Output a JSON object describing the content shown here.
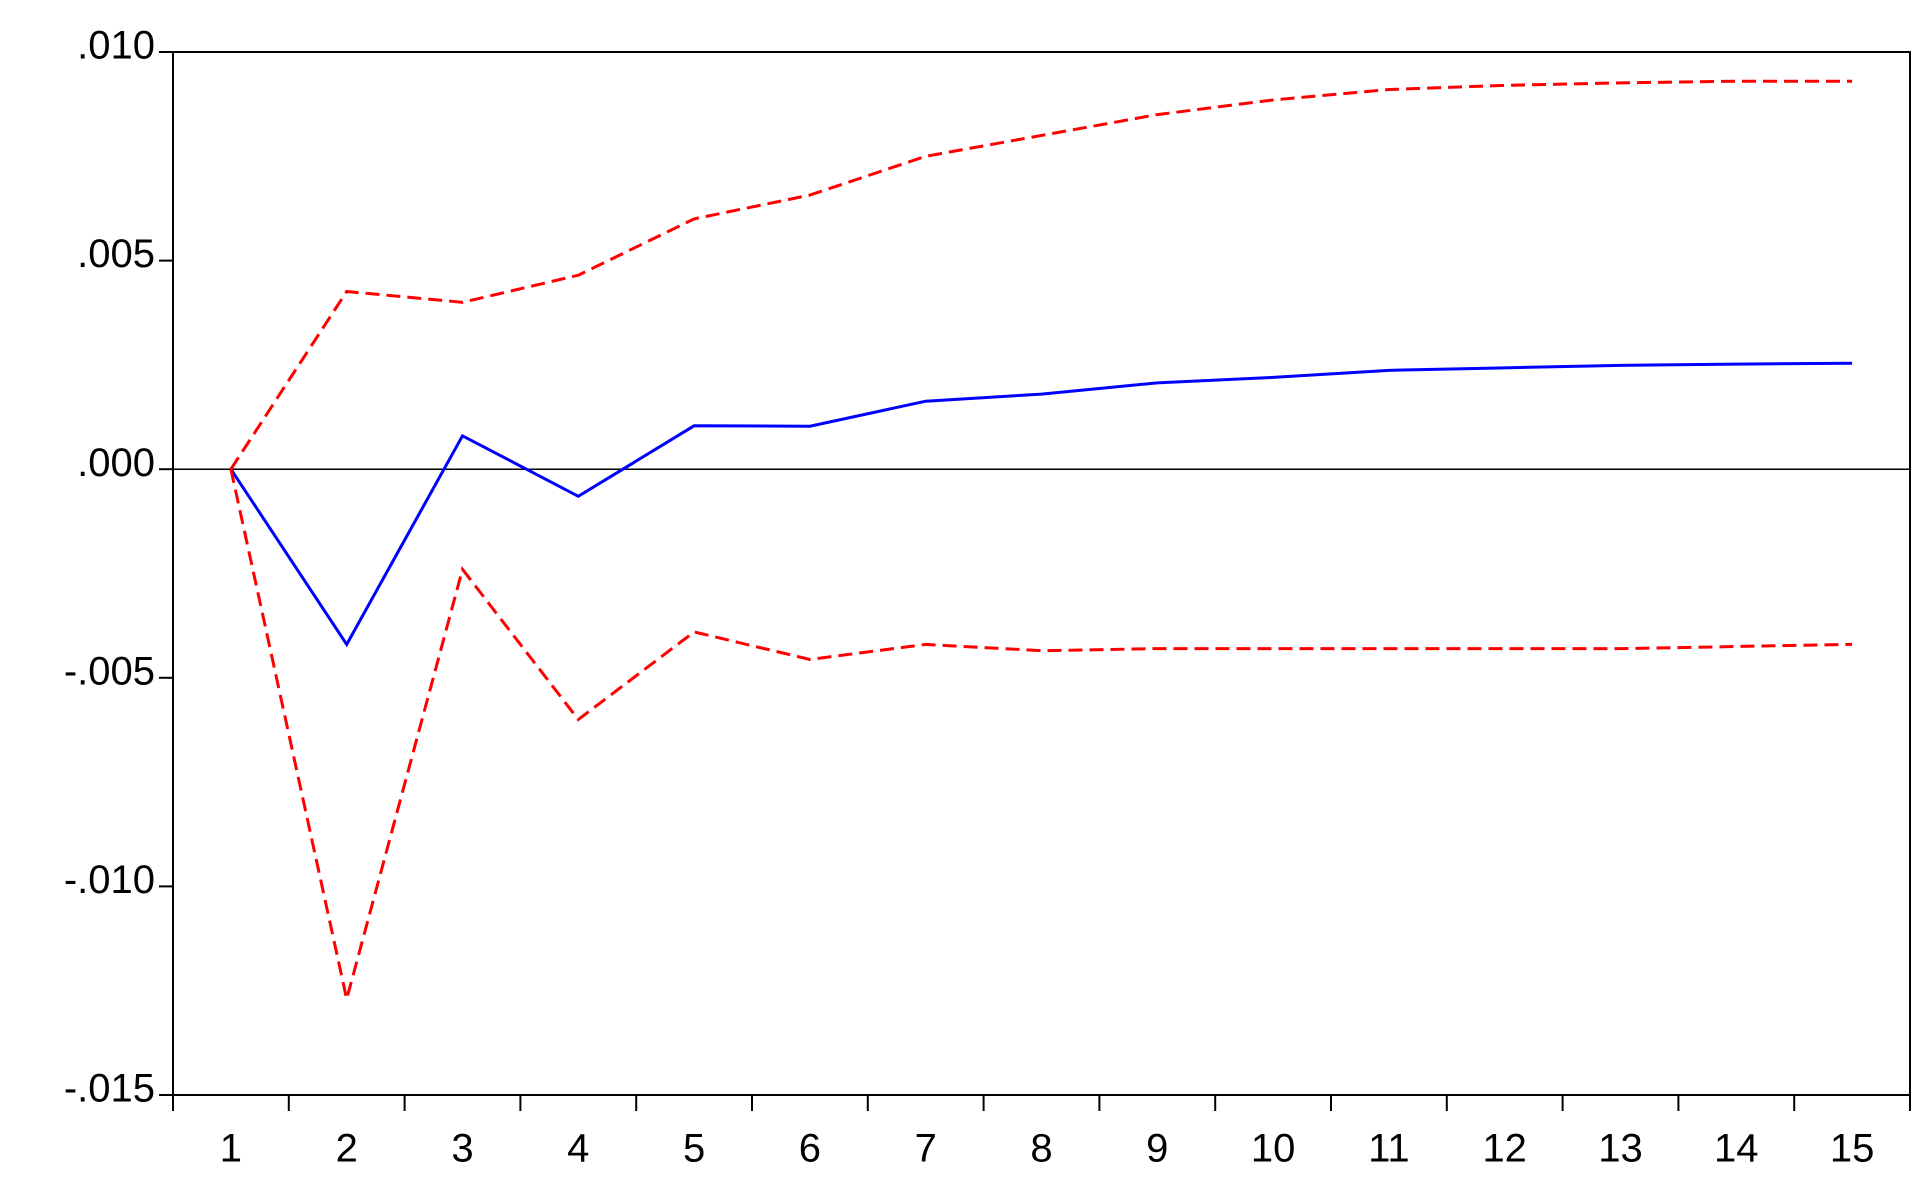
{
  "chart_data": {
    "type": "line",
    "categories": [
      "1",
      "2",
      "3",
      "4",
      "5",
      "6",
      "7",
      "8",
      "9",
      "10",
      "11",
      "12",
      "13",
      "14",
      "15"
    ],
    "series": [
      {
        "color": "#0000ff",
        "dashed": false,
        "values": [
          0,
          -0.0042,
          0.0008,
          -0.00065,
          0.00104,
          0.00103,
          0.00163,
          0.0018,
          0.00207,
          0.0022,
          0.00237,
          0.00243,
          0.00249,
          0.00252,
          0.00254
        ]
      },
      {
        "color": "#ff0000",
        "dashed": true,
        "values": [
          0,
          0.00426,
          0.004,
          0.00465,
          0.006,
          0.00657,
          0.0075,
          0.008,
          0.0085,
          0.00885,
          0.0091,
          0.0092,
          0.00926,
          0.0093,
          0.0093
        ]
      },
      {
        "color": "#ff0000",
        "dashed": true,
        "values": [
          0,
          -0.0127,
          -0.0024,
          -0.006,
          -0.0039,
          -0.00456,
          -0.0042,
          -0.00435,
          -0.0043,
          -0.0043,
          -0.0043,
          -0.0043,
          -0.0043,
          -0.00425,
          -0.0042
        ]
      }
    ],
    "ylim": [
      -0.015,
      0.01
    ],
    "yticks": [
      {
        "value": -0.015,
        "label": "-.015"
      },
      {
        "value": -0.01,
        "label": "-.010"
      },
      {
        "value": -0.005,
        "label": "-.005"
      },
      {
        "value": 0,
        "label": ".000"
      },
      {
        "value": 0.005,
        "label": ".005"
      },
      {
        "value": 0.01,
        "label": ".010"
      }
    ],
    "zero_line": true
  }
}
